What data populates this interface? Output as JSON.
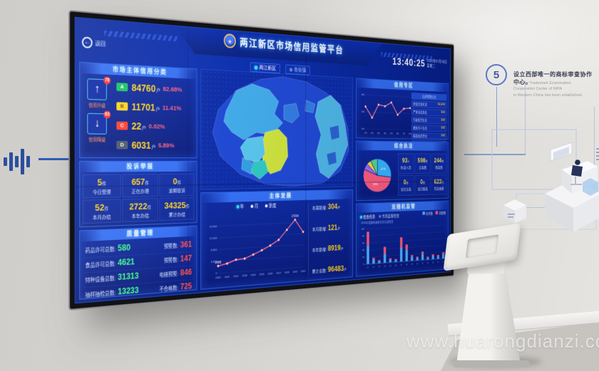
{
  "scene": {
    "watermark": "www.huarongdianzi.com",
    "wall_step_number": "5",
    "wall_text_cn": "设立西部唯一的商标审查协作中心。",
    "wall_text_en_1": "The only Trademark Examination Cooperation Center of NIPA",
    "wall_text_en_2": "in Western China has been established."
  },
  "header": {
    "back_icon": "←",
    "back_label": "返回",
    "emblem_icon": "★",
    "title": "两江新区市场信用监管平台",
    "time": "13:40:25",
    "date": "2020年07月28日",
    "weekday": "星期二"
  },
  "map_tabs": [
    {
      "label": "两江新区",
      "active": true
    },
    {
      "label": "各街镇",
      "active": false
    }
  ],
  "credit_panel": {
    "title": "市场主体信用分类",
    "up": {
      "icon": "↑",
      "badge": "78",
      "label": "信用升级"
    },
    "down": {
      "icon": "↓",
      "badge": "63",
      "label": "信用降级"
    },
    "rows": [
      {
        "grade": "A",
        "color": "#12c35f",
        "text_color": "#fff",
        "count": "84760",
        "unit": "户",
        "percent": "82.68%"
      },
      {
        "grade": "B",
        "color": "#ffd21e",
        "text_color": "#7a5b00",
        "count": "11701",
        "unit": "户",
        "percent": "11.41%"
      },
      {
        "grade": "C",
        "color": "#ff3b30",
        "text_color": "#fff",
        "count": "22",
        "unit": "户",
        "percent": "0.02%"
      },
      {
        "grade": "D",
        "color": "#46566b",
        "text_color": "#fff",
        "count": "6031",
        "unit": "户",
        "percent": "5.89%"
      }
    ]
  },
  "complaints_panel": {
    "title": "投诉举报",
    "cells": [
      {
        "value": "5",
        "unit": "件",
        "label": "今日受理"
      },
      {
        "value": "657",
        "unit": "件",
        "label": "正在办理"
      },
      {
        "value": "0",
        "unit": "件",
        "label": "逾期投诉"
      },
      {
        "value": "52",
        "unit": "件",
        "label": "本月办结"
      },
      {
        "value": "2722",
        "unit": "件",
        "label": "本年办结"
      },
      {
        "value": "34325",
        "unit": "件",
        "label": "累计办结"
      }
    ]
  },
  "quality_panel": {
    "title": "质量管理",
    "rows": [
      {
        "left_label": "药品许可总数:",
        "left_value": "580",
        "right_label": "预警数:",
        "right_value": "361"
      },
      {
        "left_label": "食品许可总数:",
        "left_value": "4621",
        "right_label": "预警数:",
        "right_value": "147"
      },
      {
        "left_label": "特种设备总数:",
        "left_value": "31313",
        "right_label": "电梯预警:",
        "right_value": "846"
      },
      {
        "left_label": "抽样抽检总数:",
        "left_value": "13233",
        "right_label": "不合格数:",
        "right_value": "725"
      }
    ]
  },
  "entity_panel": {
    "title": "主体发展",
    "legend": [
      {
        "label": "年",
        "active": true
      },
      {
        "label": "月",
        "active": false
      },
      {
        "label": "季度",
        "active": false
      }
    ],
    "stats": [
      {
        "label": "本周新增:",
        "value": "304",
        "unit": "户"
      },
      {
        "label": "本月新增:",
        "value": "121",
        "unit": "户"
      },
      {
        "label": "本年新增:",
        "value": "8919",
        "unit": "户"
      },
      {
        "label": "累计总数:",
        "value": "96483",
        "unit": "户"
      }
    ]
  },
  "credit_zone_panel": {
    "title": "信用专区",
    "list_header": "信用预警信息",
    "rows": [
      {
        "label": "经营异常名录",
        "value": "19,942"
      },
      {
        "label": "严重违法失信",
        "value": "192"
      },
      {
        "label": "行政处罚信息",
        "value": "192"
      },
      {
        "label": "被执行人信息",
        "value": "193"
      },
      {
        "label": "股权出质登记",
        "value": "193"
      },
      {
        "label": "动产抵押登记",
        "value": "192"
      }
    ]
  },
  "enforcement_panel": {
    "title": "综合执法",
    "stats": [
      {
        "value": "93",
        "unit": "人",
        "label": "执法人员"
      },
      {
        "value": "598",
        "unit": "件",
        "label": "立案数"
      },
      {
        "value": "244",
        "unit": "件",
        "label": "结案数"
      },
      {
        "value": "0",
        "unit": "件",
        "label": "当日立案"
      },
      {
        "value": "0",
        "unit": "件",
        "label": "当日结案"
      },
      {
        "value": "623",
        "unit": "万",
        "label": "罚没金额"
      }
    ]
  },
  "random_panel": {
    "title": "双随机监管",
    "tabs": [
      {
        "label": "检查任务",
        "active": true
      },
      {
        "label": "市场监管检查",
        "active": false
      }
    ],
    "legend": [
      {
        "label": "检查数",
        "color": "#4db8ff"
      },
      {
        "label": "问题数",
        "color": "#ff5d7e"
      }
    ],
    "note": "2019年双随机抽查任务完成情况"
  },
  "chart_data": [
    {
      "id": "entity_growth",
      "type": "line",
      "title": "主体发展",
      "x": [
        "2010",
        "2011",
        "2012",
        "2013",
        "2014",
        "2015",
        "2016",
        "2017",
        "2018",
        "2019",
        "2020"
      ],
      "values": [
        2456,
        3100,
        4200,
        4400,
        5600,
        6900,
        8400,
        10200,
        13600,
        17034,
        12600
      ],
      "annotations": [
        {
          "index": 0,
          "text": "2456"
        },
        {
          "index": 9,
          "text": "17034"
        }
      ],
      "ylim": [
        0,
        18000
      ],
      "yticks": [
        0,
        4000,
        8000,
        12000,
        16000
      ],
      "line_color": "#ff6e8e",
      "grid": true,
      "legend_position": "top"
    },
    {
      "id": "credit_trend",
      "type": "line",
      "title": "信用专区",
      "x": [
        "1月",
        "2月",
        "3月",
        "4月",
        "5月",
        "6月",
        "7月",
        "8月"
      ],
      "values": [
        232,
        168,
        246,
        238,
        262,
        190,
        228,
        233
      ],
      "ylim": [
        100,
        300
      ],
      "yticks": [
        100,
        200,
        300
      ],
      "line_color": "#ff7d9e",
      "grid": true
    },
    {
      "id": "enforcement_pie",
      "type": "pie",
      "title": "综合执法",
      "slices": [
        {
          "label": "27%",
          "value": 27,
          "color": "#35b6ff"
        },
        {
          "label": "54%",
          "value": 54,
          "color": "#ff5d7e"
        },
        {
          "label": "",
          "value": 6,
          "color": "#9b6bff"
        },
        {
          "label": "",
          "value": 5,
          "color": "#ffd53e"
        },
        {
          "label": "",
          "value": 8,
          "color": "#55d98a"
        }
      ]
    },
    {
      "id": "random_check",
      "type": "bar",
      "title": "双随机监管",
      "categories": [
        "01",
        "02",
        "03",
        "04",
        "05",
        "06",
        "07",
        "08",
        "09",
        "10",
        "11",
        "12",
        "13",
        "14",
        "15"
      ],
      "series": [
        {
          "name": "检查数",
          "color": "#4db8ff",
          "values": [
            52,
            12,
            6,
            25,
            8,
            6,
            40,
            34,
            12,
            8,
            17,
            6,
            10,
            8,
            13
          ]
        },
        {
          "name": "问题数",
          "color": "#ff5d7e",
          "values": [
            40,
            5,
            3,
            21,
            4,
            3,
            31,
            15,
            5,
            3,
            8,
            3,
            5,
            4,
            6
          ]
        }
      ],
      "stacked": true,
      "ylim": [
        0,
        100
      ],
      "yticks": [
        0,
        20,
        40,
        60,
        80,
        100
      ]
    }
  ]
}
